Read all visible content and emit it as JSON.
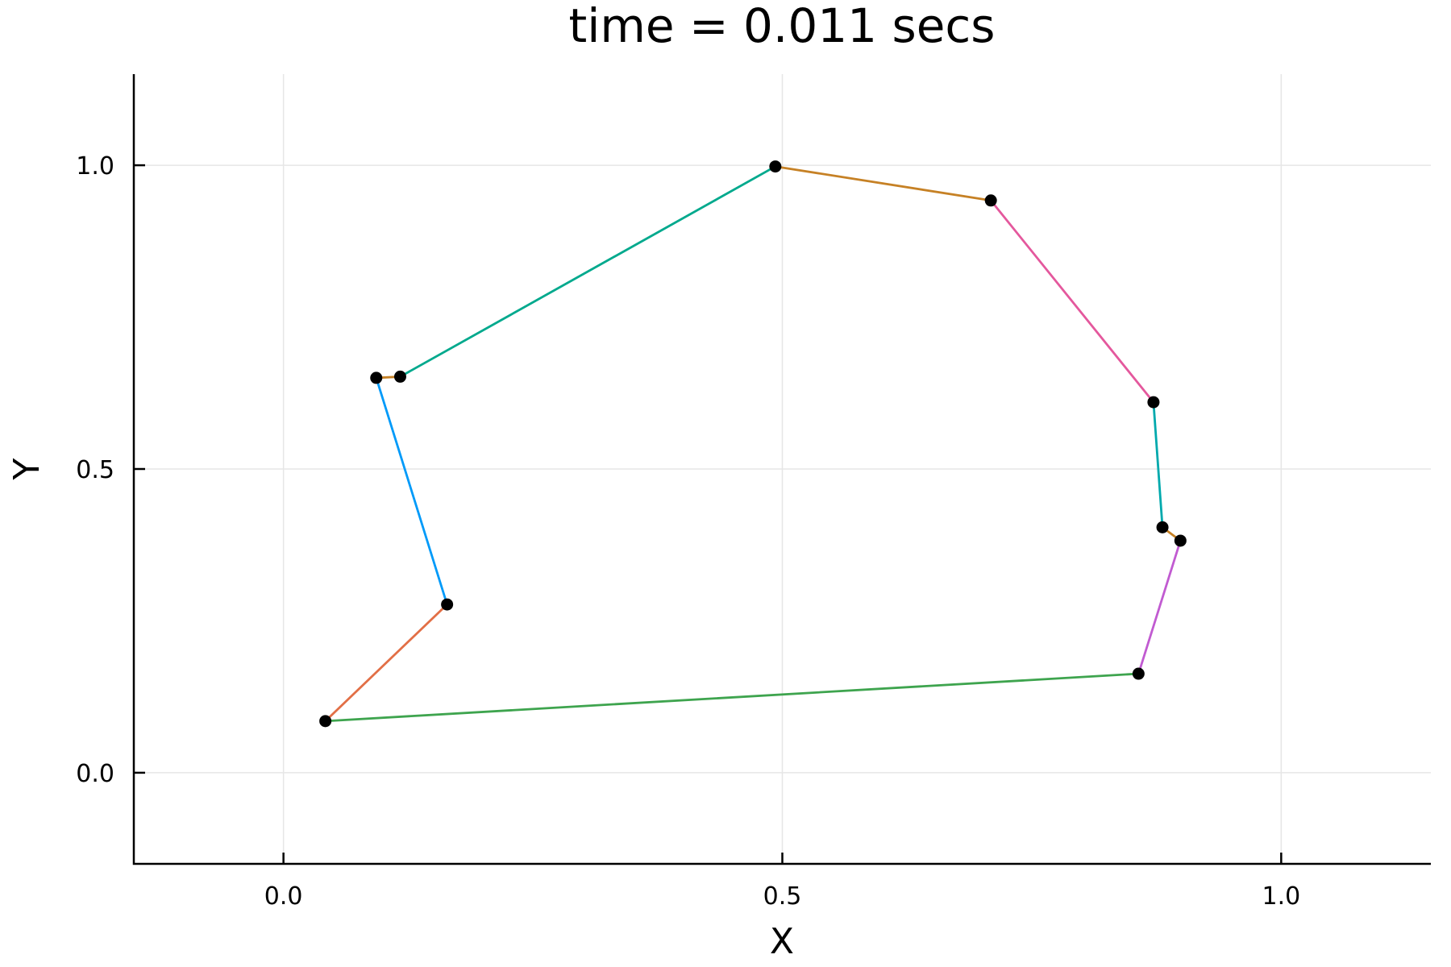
{
  "chart_data": {
    "type": "line",
    "title": "time = 0.011 secs",
    "xlabel": "X",
    "ylabel": "Y",
    "xlim": [
      -0.15,
      1.15
    ],
    "ylim": [
      -0.15,
      1.15
    ],
    "xticks": [
      0.0,
      0.5,
      1.0
    ],
    "yticks": [
      0.0,
      0.5,
      1.0
    ],
    "xtick_labels": [
      "0.0",
      "0.5",
      "1.0"
    ],
    "ytick_labels": [
      "0.0",
      "0.5",
      "1.0"
    ],
    "grid": true,
    "legend": "none",
    "points": [
      {
        "x": 0.042,
        "y": 0.085
      },
      {
        "x": 0.164,
        "y": 0.277
      },
      {
        "x": 0.093,
        "y": 0.65
      },
      {
        "x": 0.117,
        "y": 0.652
      },
      {
        "x": 0.493,
        "y": 0.998
      },
      {
        "x": 0.709,
        "y": 0.942
      },
      {
        "x": 0.872,
        "y": 0.61
      },
      {
        "x": 0.881,
        "y": 0.404
      },
      {
        "x": 0.899,
        "y": 0.382
      },
      {
        "x": 0.857,
        "y": 0.163
      }
    ],
    "segments": [
      {
        "from": 0,
        "to": 1,
        "color": "#e26f46"
      },
      {
        "from": 1,
        "to": 2,
        "color": "#009af9"
      },
      {
        "from": 2,
        "to": 3,
        "color": "#c68125"
      },
      {
        "from": 3,
        "to": 4,
        "color": "#00a98d"
      },
      {
        "from": 4,
        "to": 5,
        "color": "#c68125"
      },
      {
        "from": 5,
        "to": 6,
        "color": "#e4589d"
      },
      {
        "from": 6,
        "to": 7,
        "color": "#00a9ad"
      },
      {
        "from": 7,
        "to": 8,
        "color": "#c68125"
      },
      {
        "from": 8,
        "to": 9,
        "color": "#c15bd1"
      },
      {
        "from": 9,
        "to": 0,
        "color": "#3ea44e"
      }
    ],
    "marker_color": "#000000"
  }
}
